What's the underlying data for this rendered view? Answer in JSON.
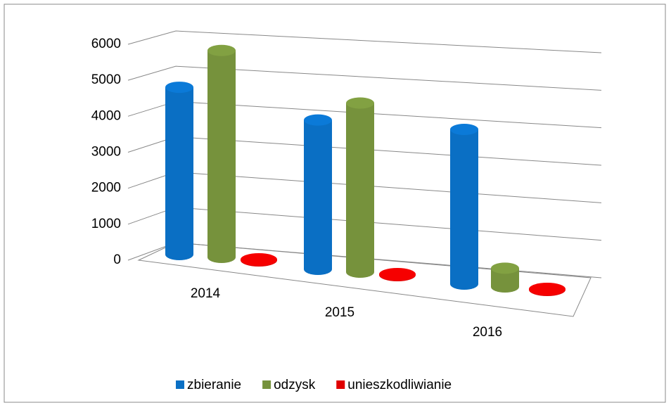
{
  "chart_data": {
    "type": "bar3d",
    "categories": [
      "2014",
      "2015",
      "2016"
    ],
    "series": [
      {
        "name": "zbieranie",
        "color": "#0a6fc4",
        "values": [
          4650,
          4150,
          4300
        ]
      },
      {
        "name": "odzysk",
        "color": "#76923c",
        "values": [
          5750,
          4700,
          520
        ]
      },
      {
        "name": "unieszkodliwianie",
        "color": "#e00000",
        "values": [
          20,
          20,
          20
        ]
      }
    ],
    "ylim": [
      0,
      6000
    ],
    "yticks": [
      0,
      1000,
      2000,
      3000,
      4000,
      5000,
      6000
    ],
    "grid": true,
    "legend": "bottom"
  }
}
